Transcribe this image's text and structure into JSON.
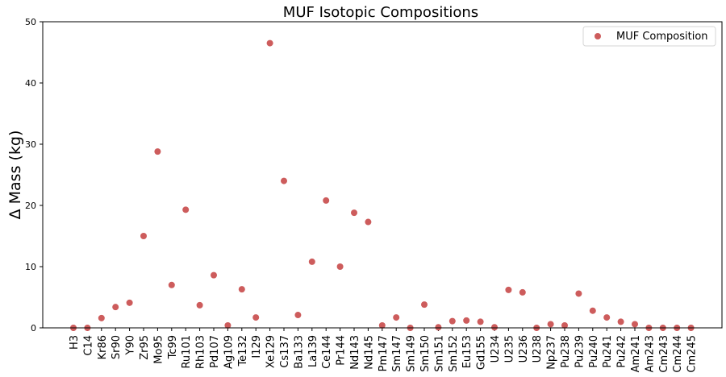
{
  "chart_data": {
    "type": "scatter",
    "title": "MUF Isotopic Compositions",
    "xlabel": "",
    "ylabel": "Δ Mass (kg)",
    "ylim": [
      0,
      50
    ],
    "yticks": [
      0,
      10,
      20,
      30,
      40,
      50
    ],
    "grid": false,
    "legend_position": "top-right",
    "series": [
      {
        "name": "MUF Composition",
        "color": "#cd5c5c",
        "x": [
          "H3",
          "C14",
          "Kr86",
          "Sr90",
          "Y90",
          "Zr95",
          "Mo95",
          "Tc99",
          "Ru101",
          "Rh103",
          "Pd107",
          "Ag109",
          "Te132",
          "I129",
          "Xe129",
          "Cs137",
          "Ba133",
          "La139",
          "Ce144",
          "Pr144",
          "Nd143",
          "Nd145",
          "Pm147",
          "Sm147",
          "Sm149",
          "Sm150",
          "Sm151",
          "Sm152",
          "Eu153",
          "Gd155",
          "U234",
          "U235",
          "U236",
          "U238",
          "Np237",
          "Pu238",
          "Pu239",
          "Pu240",
          "Pu241",
          "Pu242",
          "Am241",
          "Am243",
          "Cm243",
          "Cm244",
          "Cm245"
        ],
        "values": [
          0.0,
          0.0,
          1.6,
          3.4,
          4.1,
          15.0,
          28.8,
          7.0,
          19.3,
          3.7,
          8.6,
          0.4,
          6.3,
          1.7,
          46.5,
          24.0,
          2.1,
          10.8,
          20.8,
          10.0,
          18.8,
          17.3,
          0.4,
          1.7,
          0.0,
          3.8,
          0.1,
          1.1,
          1.2,
          1.0,
          0.1,
          6.2,
          5.8,
          0.0,
          0.6,
          0.4,
          5.6,
          2.8,
          1.7,
          1.0,
          0.6,
          0.0,
          0.0,
          0.0,
          0.0
        ]
      }
    ]
  }
}
